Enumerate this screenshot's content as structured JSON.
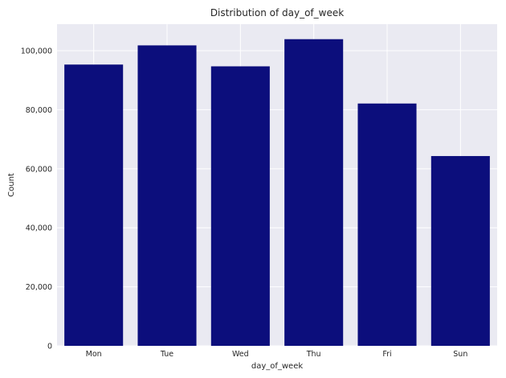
{
  "chart_data": {
    "type": "bar",
    "title": "Distribution of day_of_week",
    "xlabel": "day_of_week",
    "ylabel": "Count",
    "categories": [
      "Mon",
      "Tue",
      "Wed",
      "Thu",
      "Fri",
      "Sun"
    ],
    "values": [
      95300,
      101800,
      94700,
      103900,
      82100,
      64300
    ],
    "ylim": [
      0,
      109000
    ],
    "yticks": [
      0,
      20000,
      40000,
      60000,
      80000,
      100000
    ],
    "ytick_labels": [
      "0",
      "20,000",
      "40,000",
      "60,000",
      "80,000",
      "100,000"
    ],
    "grid": true,
    "colors": {
      "bar": "#0c0e7c",
      "plot_background": "#eaeaf2",
      "grid": "#ffffff"
    }
  }
}
